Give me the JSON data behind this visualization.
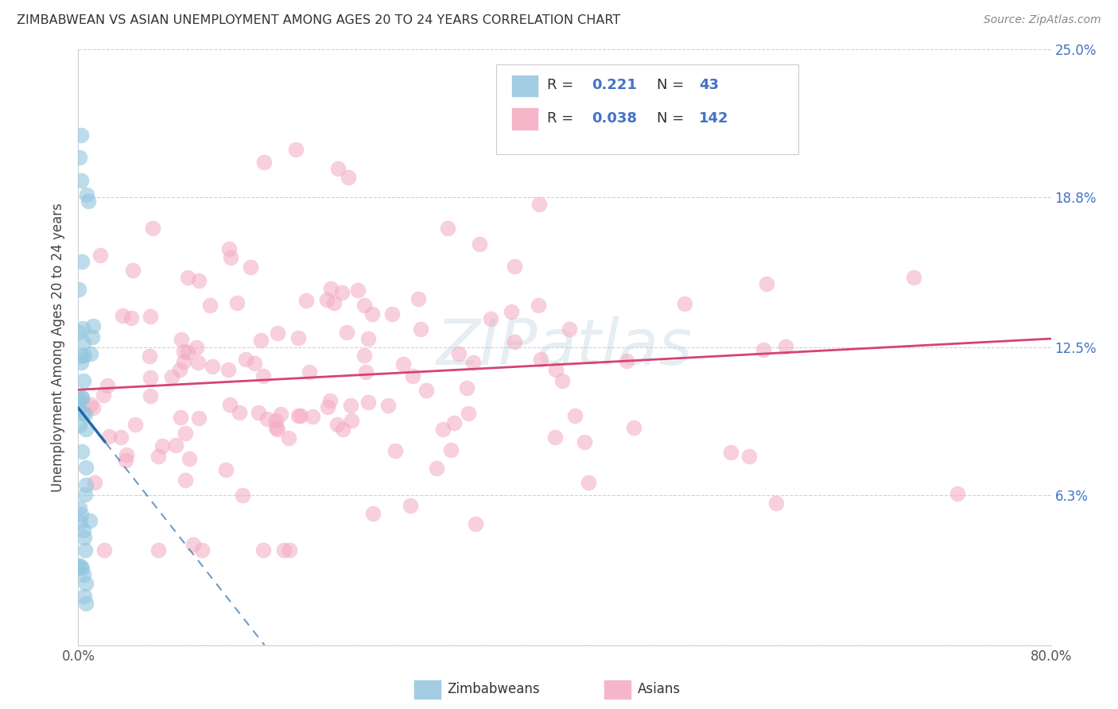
{
  "title": "ZIMBABWEAN VS ASIAN UNEMPLOYMENT AMONG AGES 20 TO 24 YEARS CORRELATION CHART",
  "source": "Source: ZipAtlas.com",
  "ylabel": "Unemployment Among Ages 20 to 24 years",
  "xmin": 0.0,
  "xmax": 0.8,
  "ymin": 0.0,
  "ymax": 0.25,
  "ytick_positions": [
    0.0,
    0.063,
    0.125,
    0.188,
    0.25
  ],
  "ytick_labels": [
    "",
    "6.3%",
    "12.5%",
    "18.8%",
    "25.0%"
  ],
  "legend_R_zim": "0.221",
  "legend_N_zim": "43",
  "legend_R_asian": "0.038",
  "legend_N_asian": "142",
  "zim_color": "#92c5de",
  "asian_color": "#f4a9c0",
  "zim_line_color": "#2166ac",
  "asian_line_color": "#d6436e",
  "watermark": "ZIPatlas",
  "background_color": "#ffffff",
  "grid_color": "#cccccc",
  "right_tick_color": "#4472c4",
  "title_color": "#333333",
  "source_color": "#888888"
}
